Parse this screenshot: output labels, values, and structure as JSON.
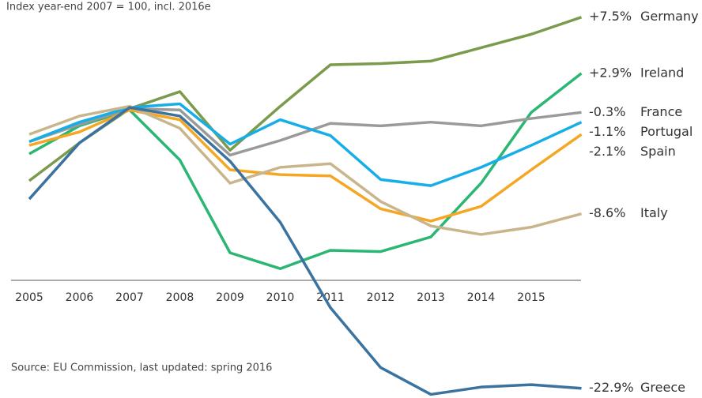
{
  "chart_data": {
    "type": "line",
    "subtitle": "Index year-end 2007 = 100, incl. 2016e",
    "source": "Source: EU Commission, last updated: spring 2016",
    "categories": [
      "2005",
      "2006",
      "2007",
      "2008",
      "2009",
      "2010",
      "2011",
      "2012",
      "2013",
      "2014",
      "2015",
      null
    ],
    "ylim": [
      76.5,
      108
    ],
    "series": [
      {
        "name": "Germany",
        "color": "#7a9a4c",
        "end_label": "+7.5%",
        "values": [
          94.1,
          97.2,
          100,
          101.4,
          96.6,
          100.2,
          103.6,
          103.7,
          103.9,
          105.0,
          106.1,
          107.5
        ]
      },
      {
        "name": "Ireland",
        "color": "#2bb673",
        "end_label": "+2.9%",
        "values": [
          96.3,
          98.6,
          99.9,
          95.8,
          88.2,
          86.9,
          88.4,
          88.3,
          89.5,
          93.9,
          99.7,
          102.9
        ]
      },
      {
        "name": "France",
        "color": "#9a9a9a",
        "end_label": "-0.3%",
        "values": [
          97.3,
          98.7,
          100,
          99.9,
          96.2,
          97.4,
          98.8,
          98.6,
          98.9,
          98.6,
          99.2,
          99.7
        ]
      },
      {
        "name": "Portugal",
        "color": "#17aee8",
        "end_label": "-1.1%",
        "values": [
          97.3,
          98.9,
          100.1,
          100.4,
          97.1,
          99.1,
          97.8,
          94.2,
          93.7,
          95.2,
          97.0,
          98.9
        ]
      },
      {
        "name": "Spain",
        "color": "#f5a623",
        "end_label": "-2.1%",
        "values": [
          97.0,
          98.1,
          99.9,
          99.1,
          95.0,
          94.6,
          94.5,
          91.8,
          90.8,
          92.0,
          95.0,
          97.9
        ]
      },
      {
        "name": "Italy",
        "color": "#c9b58b",
        "end_label": "-8.6%",
        "values": [
          97.9,
          99.4,
          100.2,
          98.4,
          93.9,
          95.2,
          95.5,
          92.4,
          90.4,
          89.7,
          90.3,
          91.4
        ]
      },
      {
        "name": "Greece",
        "color": "#3a73a0",
        "end_label": "-22.9%",
        "values": [
          92.6,
          97.2,
          100.1,
          99.4,
          95.7,
          90.7,
          83.7,
          78.8,
          76.6,
          77.2,
          77.4,
          77.1
        ]
      }
    ]
  }
}
